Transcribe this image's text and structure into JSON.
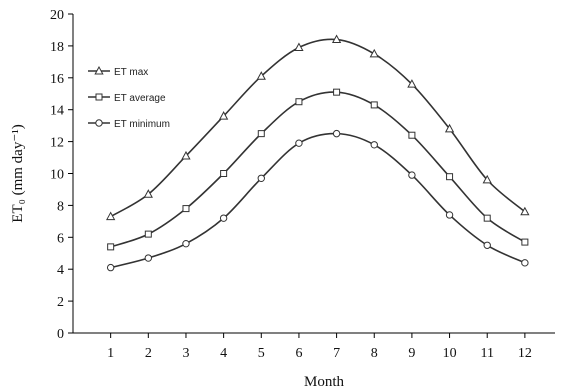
{
  "chart_data": {
    "type": "line",
    "x": [
      1,
      2,
      3,
      4,
      5,
      6,
      7,
      8,
      9,
      10,
      11,
      12
    ],
    "xlabel": "Month",
    "ylabel": "ET₀ (mm day⁻¹)",
    "xlim": [
      0,
      12.8
    ],
    "ylim": [
      0,
      20
    ],
    "xticks": [
      "1",
      "2",
      "3",
      "4",
      "5",
      "6",
      "7",
      "8",
      "9",
      "10",
      "11",
      "12"
    ],
    "yticks": [
      "0",
      "2",
      "4",
      "6",
      "8",
      "10",
      "12",
      "14",
      "16",
      "18",
      "20"
    ],
    "grid": false,
    "legend_position": "top-left",
    "series": [
      {
        "name": "ET max",
        "marker": "triangle",
        "values": [
          7.3,
          8.7,
          11.1,
          13.6,
          16.1,
          17.9,
          18.4,
          17.5,
          15.6,
          12.8,
          9.6,
          7.6
        ]
      },
      {
        "name": "ET average",
        "marker": "square",
        "values": [
          5.4,
          6.2,
          7.8,
          10.0,
          12.5,
          14.5,
          15.1,
          14.3,
          12.4,
          9.8,
          7.2,
          5.7
        ]
      },
      {
        "name": "ET minimum",
        "marker": "circle",
        "values": [
          4.1,
          4.7,
          5.6,
          7.2,
          9.7,
          11.9,
          12.5,
          11.8,
          9.9,
          7.4,
          5.5,
          4.4
        ]
      }
    ],
    "line_color": "#333333"
  }
}
